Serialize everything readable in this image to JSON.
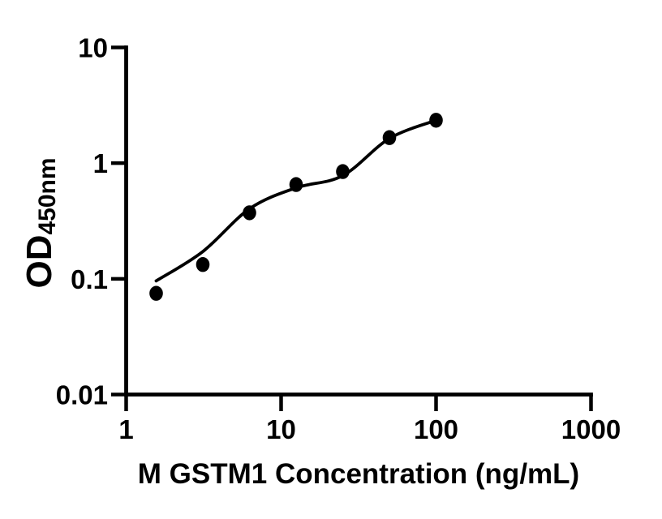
{
  "figure": {
    "background_color": "#ffffff",
    "ink_color": "#000000"
  },
  "chart_data": {
    "type": "scatter",
    "title": "",
    "xlabel": "M GSTM1 Concentration (ng/mL)",
    "ylabel_main": "OD",
    "ylabel_sub": "450nm",
    "x_scale": "log10",
    "y_scale": "log10",
    "xlim": [
      1,
      1000
    ],
    "ylim": [
      0.01,
      10
    ],
    "x_ticks": {
      "values": [
        1,
        10,
        100,
        1000
      ],
      "labels": [
        "1",
        "10",
        "100",
        "1000"
      ]
    },
    "y_ticks": {
      "values": [
        10,
        1,
        0.1,
        0.01
      ],
      "labels": [
        "10",
        "1",
        "0.1",
        "0.01"
      ]
    },
    "grid": false,
    "legend": "none",
    "marker_color": "#000000",
    "line_color": "#000000",
    "series": [
      {
        "name": "standard-points",
        "type": "scatter",
        "marker": "filled-circle",
        "x": [
          1.5625,
          3.125,
          6.25,
          12.5,
          25,
          50,
          100
        ],
        "y": [
          0.075,
          0.133,
          0.372,
          0.653,
          0.845,
          1.661,
          2.347
        ]
      },
      {
        "name": "fit-curve",
        "type": "smooth-line",
        "x": [
          1.5625,
          3.125,
          6.25,
          12.5,
          25,
          50,
          100
        ],
        "y": [
          0.096,
          0.172,
          0.403,
          0.612,
          0.779,
          1.634,
          2.347
        ]
      }
    ]
  }
}
